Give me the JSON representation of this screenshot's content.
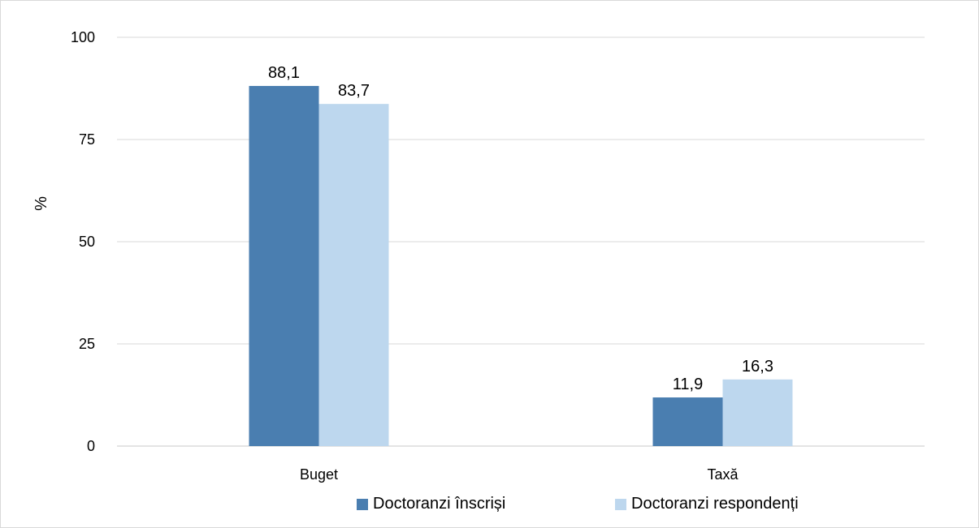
{
  "chart_data": {
    "type": "bar",
    "title": "",
    "xlabel": "",
    "ylabel": "%",
    "ylim": [
      0,
      100
    ],
    "yticks": [
      0,
      25,
      50,
      75,
      100
    ],
    "categories": [
      "Buget",
      "Taxă"
    ],
    "series": [
      {
        "name": "Doctoranzi înscriși",
        "values": [
          88.1,
          11.9
        ],
        "value_labels": [
          "88,1",
          "11,9"
        ],
        "color": "#4a7eb0"
      },
      {
        "name": "Doctoranzi respondenți",
        "values": [
          83.7,
          16.3
        ],
        "value_labels": [
          "83,7",
          "16,3"
        ],
        "color": "#bdd7ee"
      }
    ],
    "grid": true,
    "legend_position": "bottom"
  }
}
